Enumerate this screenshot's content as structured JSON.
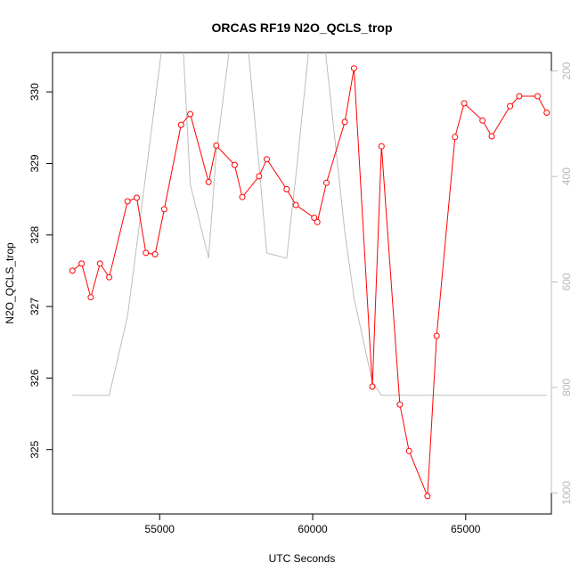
{
  "chart_data": {
    "type": "line",
    "title": "ORCAS RF19 N2O_QCLS_trop",
    "xlabel": "UTC Seconds",
    "ylabel": "N2O_QCLS_trop",
    "xlim": [
      51500,
      67800
    ],
    "ylim": [
      324.1,
      330.55
    ],
    "y2lim": [
      1040,
      165
    ],
    "x_ticks": [
      55000,
      60000,
      65000
    ],
    "y_ticks": [
      325,
      326,
      327,
      328,
      329,
      330
    ],
    "y2_ticks": [
      200,
      400,
      600,
      800,
      1000
    ],
    "grid": false,
    "colors": {
      "primary": "#ff0000",
      "secondary": "#bebebe"
    },
    "series": [
      {
        "axis": "left",
        "marker": "open-circle",
        "x": [
          52150,
          52450,
          52750,
          53050,
          53350,
          53950,
          54250,
          54550,
          54850,
          55150,
          55700,
          56000,
          56600,
          56850,
          57450,
          57700,
          58250,
          58500,
          59150,
          59450,
          60050,
          60150,
          60450,
          61050,
          61350,
          61950,
          62250,
          62850,
          63150,
          63750,
          64050,
          64650,
          64950,
          65550,
          65850,
          66450,
          66750,
          67350,
          67650
        ],
        "values": [
          327.5,
          327.6,
          327.13,
          327.6,
          327.41,
          328.47,
          328.52,
          327.75,
          327.73,
          328.36,
          329.54,
          329.69,
          328.74,
          329.25,
          328.98,
          328.53,
          328.82,
          329.06,
          328.64,
          328.42,
          328.24,
          328.18,
          328.73,
          329.58,
          330.33,
          325.88,
          329.24,
          325.63,
          324.98,
          324.35,
          326.59,
          329.37,
          329.84,
          329.6,
          329.38,
          329.8,
          329.94,
          329.94,
          329.71
        ]
      },
      {
        "axis": "right",
        "marker": "none",
        "x": [
          52150,
          52750,
          53350,
          53950,
          54550,
          55150,
          55700,
          56000,
          56600,
          56850,
          57450,
          57700,
          58250,
          58500,
          59150,
          59450,
          60050,
          60150,
          60450,
          61050,
          61350,
          61950,
          62250,
          62850,
          63150,
          63750,
          64050,
          64650,
          64950,
          65550,
          65850,
          66450,
          66750,
          67350,
          67650
        ],
        "values": [
          815,
          815,
          815,
          665,
          395,
          120,
          80,
          415,
          555,
          355,
          80,
          40,
          380,
          545,
          555,
          400,
          60,
          40,
          180,
          505,
          630,
          790,
          815,
          815,
          815,
          815,
          815,
          815,
          815,
          815,
          815,
          815,
          815,
          815,
          815
        ]
      }
    ]
  }
}
